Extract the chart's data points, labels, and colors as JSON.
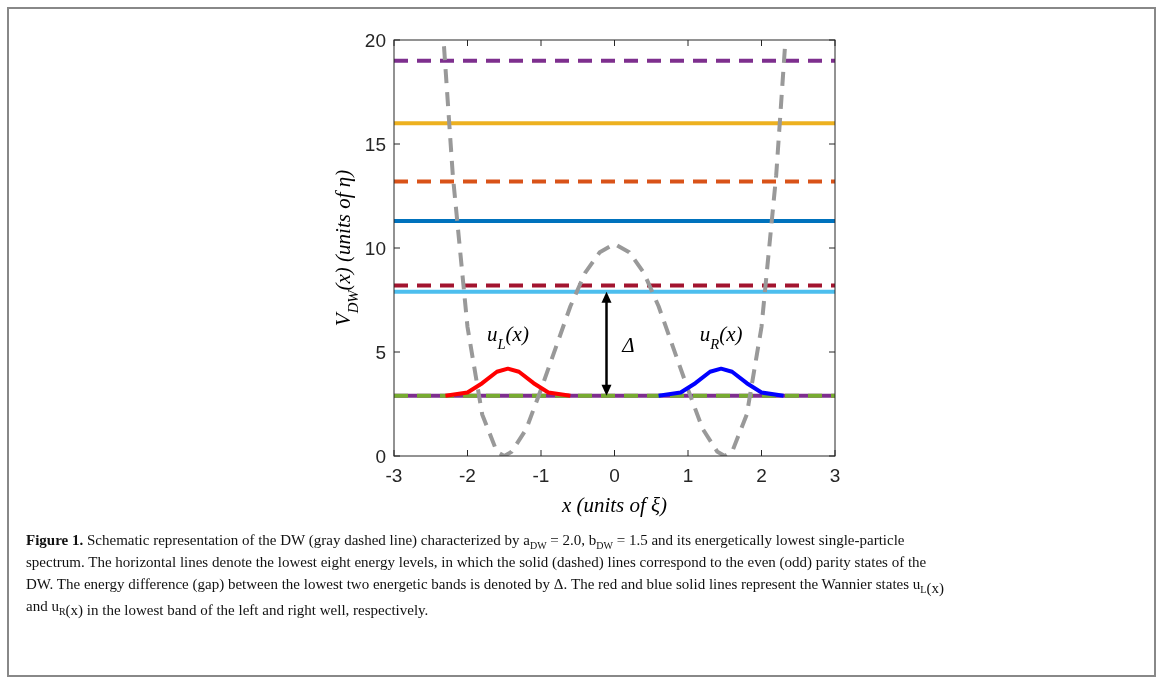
{
  "chart_data": {
    "type": "line",
    "xlabel": "x (units of ξ)",
    "ylabel": "V$_{DW}$(x) (units of η)",
    "xlim": [
      -3,
      3
    ],
    "ylim": [
      0,
      20
    ],
    "xticks": [
      -3,
      -2,
      -1,
      0,
      1,
      2,
      3
    ],
    "yticks": [
      0,
      5,
      10,
      15,
      20
    ],
    "grid": false,
    "marker": "none",
    "series": [
      {
        "color": "#7e2f8e",
        "line_style": "solid",
        "x": [
          -3,
          3
        ],
        "values": [
          2.9,
          2.9
        ]
      },
      {
        "color": "#77ac30",
        "line_style": "dashed",
        "x": [
          -3,
          3
        ],
        "values": [
          2.9,
          2.9
        ]
      },
      {
        "color": "#4dbeee",
        "line_style": "solid",
        "x": [
          -3,
          3
        ],
        "values": [
          7.9,
          7.9
        ]
      },
      {
        "color": "#a2142f",
        "line_style": "dashed",
        "x": [
          -3,
          3
        ],
        "values": [
          8.2,
          8.2
        ]
      },
      {
        "color": "#0072bd",
        "line_style": "solid",
        "x": [
          -3,
          3
        ],
        "values": [
          11.3,
          11.3
        ]
      },
      {
        "color": "#d95319",
        "line_style": "dashed",
        "x": [
          -3,
          3
        ],
        "values": [
          13.2,
          13.2
        ]
      },
      {
        "color": "#edb120",
        "line_style": "solid",
        "x": [
          -3,
          3
        ],
        "values": [
          16.0,
          16.0
        ]
      },
      {
        "color": "#7e2f8e",
        "line_style": "dashed",
        "x": [
          -3,
          3
        ],
        "values": [
          19.0,
          19.0
        ]
      },
      {
        "color": "#999999",
        "line_style": "dashed",
        "x": [
          -2.32,
          -2.2,
          -2.0,
          -1.8,
          -1.6,
          -1.5,
          -1.4,
          -1.2,
          -1.0,
          -0.8,
          -0.6,
          -0.4,
          -0.2,
          0,
          0.2,
          0.4,
          0.6,
          0.8,
          1.0,
          1.2,
          1.4,
          1.5,
          1.6,
          1.8,
          2.0,
          2.2,
          2.32
        ],
        "values": [
          19.7,
          13.5,
          6.2,
          2.0,
          0.2,
          0,
          0.2,
          1.3,
          3.2,
          5.2,
          7.2,
          8.8,
          9.8,
          10.2,
          9.8,
          8.8,
          7.2,
          5.2,
          3.2,
          1.3,
          0.2,
          0,
          0.2,
          2.0,
          6.2,
          13.5,
          19.7
        ]
      },
      {
        "color": "#ff0000",
        "line_style": "solid",
        "x": [
          -2.3,
          -2.0,
          -1.8,
          -1.6,
          -1.45,
          -1.3,
          -1.1,
          -0.9,
          -0.6
        ],
        "values": [
          2.9,
          3.05,
          3.5,
          4.05,
          4.2,
          4.05,
          3.5,
          3.05,
          2.9
        ]
      },
      {
        "color": "#0000ff",
        "line_style": "solid",
        "x": [
          0.6,
          0.9,
          1.1,
          1.3,
          1.45,
          1.6,
          1.8,
          2.0,
          2.3
        ],
        "values": [
          2.9,
          3.05,
          3.5,
          4.05,
          4.2,
          4.05,
          3.5,
          3.05,
          2.9
        ]
      }
    ],
    "annotations": [
      "u$_{L}$(x)",
      "u$_{R}$(x)",
      "Δ",
      "Figure 1.",
      "Schematic representation of the DW (gray dashed line) characterized by a$_{DW}$ = 2.0, b$_{DW}$ = 1.5 and its energetically lowest single-particle spectrum. The horizontal lines denote the lowest eight energy levels, in which the solid (dashed) lines correspond to the even (odd) parity states of the DW. The energy difference (gap) between the lowest two energetic bands is denoted by Δ. The red and blue solid lines represent the Wannier states u$_{L}$(x) and u$_{R}$(x) in the lowest band of the left and right well, respectively."
    ]
  }
}
